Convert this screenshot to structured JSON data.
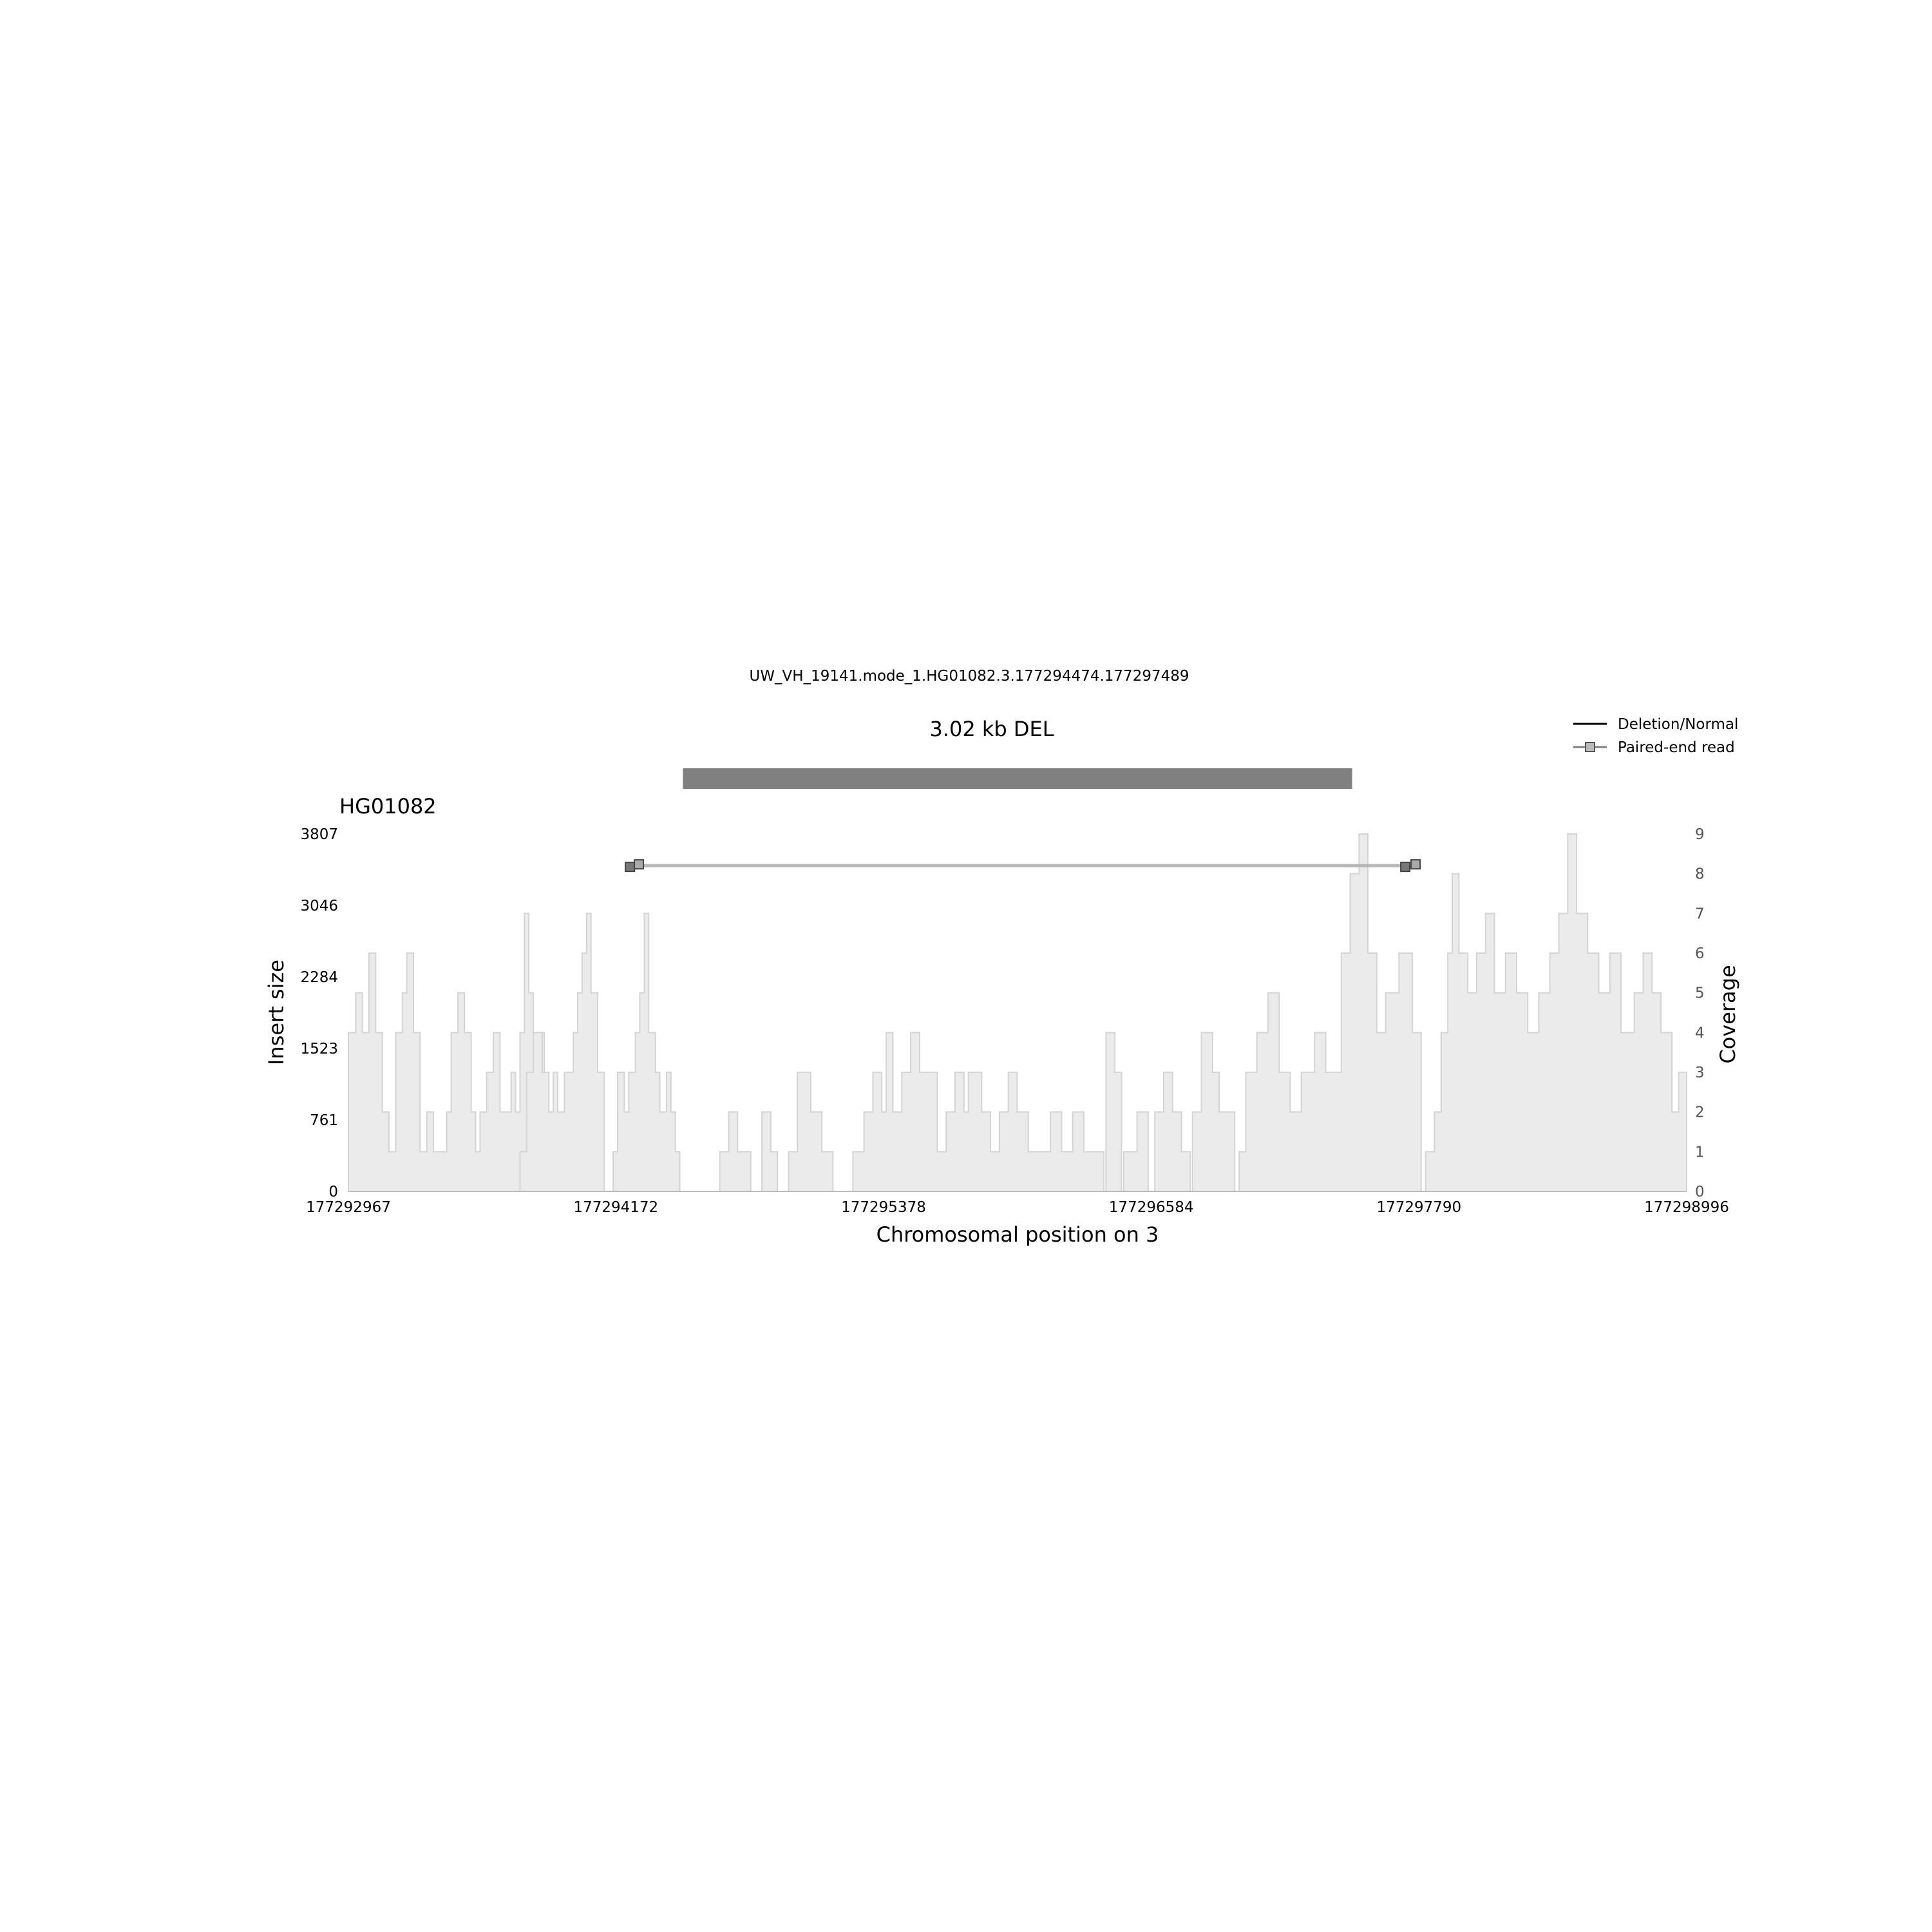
{
  "title": "UW_VH_19141.mode_1.HG01082.3.177294474.177297489",
  "chart_data": {
    "type": "area",
    "variant_label": "3.02 kb DEL",
    "variant_start": 177294474,
    "variant_end": 177297489,
    "sample": "HG01082",
    "xlabel": "Chromosomal position on 3",
    "ylabel_left": "Insert size",
    "ylabel_right": "Coverage",
    "xlim": [
      177292967,
      177298996
    ],
    "x_ticks": [
      "177292967",
      "177294172",
      "177295378",
      "177296584",
      "177297790",
      "177298996"
    ],
    "ylim_left": [
      0,
      3807
    ],
    "y_ticks_left": [
      "0",
      "761",
      "1523",
      "2284",
      "3046",
      "3807"
    ],
    "ylim_right": [
      0,
      9
    ],
    "y_ticks_right": [
      "0",
      "1",
      "2",
      "3",
      "4",
      "5",
      "6",
      "7",
      "8",
      "9"
    ],
    "paired_end_reads": [
      {
        "start": 177294270,
        "end": 177297740,
        "insert_size": 3470
      }
    ],
    "legend": [
      {
        "label": "Deletion/Normal",
        "style": "line",
        "color": "#000000"
      },
      {
        "label": "Paired-end read",
        "style": "line-square",
        "color": "#808080"
      }
    ],
    "coverage_segments": [
      [
        [
          177292967,
          4
        ],
        [
          177293000,
          5
        ],
        [
          177293030,
          4
        ],
        [
          177293060,
          6
        ],
        [
          177293090,
          4
        ],
        [
          177293120,
          2
        ],
        [
          177293150,
          1
        ],
        [
          177293180,
          4
        ],
        [
          177293210,
          5
        ],
        [
          177293230,
          6
        ],
        [
          177293260,
          4
        ],
        [
          177293290,
          1
        ],
        [
          177293320,
          2
        ],
        [
          177293350,
          1
        ],
        [
          177293380,
          1
        ],
        [
          177293410,
          2
        ],
        [
          177293430,
          4
        ],
        [
          177293460,
          5
        ],
        [
          177293490,
          4
        ],
        [
          177293520,
          2
        ],
        [
          177293540,
          1
        ],
        [
          177293560,
          2
        ],
        [
          177293590,
          3
        ],
        [
          177293620,
          4
        ],
        [
          177293650,
          2
        ],
        [
          177293680,
          2
        ],
        [
          177293700,
          3
        ],
        [
          177293720,
          2
        ],
        [
          177293740,
          4
        ],
        [
          177293760,
          7
        ],
        [
          177293780,
          5
        ],
        [
          177293800,
          4
        ],
        [
          177293820,
          4
        ],
        [
          177293840,
          4
        ],
        [
          177293850,
          0
        ]
      ],
      [
        [
          177293740,
          0
        ],
        [
          177293740,
          1
        ],
        [
          177293770,
          3
        ],
        [
          177293800,
          4
        ],
        [
          177293840,
          3
        ],
        [
          177293870,
          2
        ],
        [
          177293890,
          3
        ],
        [
          177293910,
          2
        ],
        [
          177293940,
          3
        ],
        [
          177293960,
          3
        ],
        [
          177293980,
          4
        ],
        [
          177294000,
          5
        ],
        [
          177294020,
          6
        ],
        [
          177294040,
          7
        ],
        [
          177294060,
          5
        ],
        [
          177294090,
          3
        ],
        [
          177294120,
          0
        ]
      ],
      [
        [
          177294160,
          0
        ],
        [
          177294160,
          1
        ],
        [
          177294180,
          3
        ],
        [
          177294210,
          2
        ],
        [
          177294230,
          3
        ],
        [
          177294260,
          4
        ],
        [
          177294280,
          5
        ],
        [
          177294300,
          7
        ],
        [
          177294320,
          4
        ],
        [
          177294350,
          3
        ],
        [
          177294370,
          2
        ],
        [
          177294400,
          3
        ],
        [
          177294420,
          2
        ],
        [
          177294440,
          1
        ],
        [
          177294460,
          0
        ]
      ],
      [
        [
          177294640,
          1
        ],
        [
          177294680,
          2
        ],
        [
          177294720,
          1
        ],
        [
          177294780,
          0
        ]
      ],
      [
        [
          177294830,
          0
        ],
        [
          177294830,
          2
        ],
        [
          177294870,
          1
        ],
        [
          177294900,
          0
        ]
      ],
      [
        [
          177294950,
          0
        ],
        [
          177294950,
          1
        ],
        [
          177294990,
          3
        ],
        [
          177295050,
          2
        ],
        [
          177295100,
          1
        ],
        [
          177295150,
          0
        ]
      ],
      [
        [
          177295240,
          1
        ],
        [
          177295290,
          2
        ],
        [
          177295330,
          3
        ],
        [
          177295370,
          2
        ],
        [
          177295390,
          4
        ],
        [
          177295420,
          2
        ],
        [
          177295460,
          3
        ],
        [
          177295500,
          4
        ],
        [
          177295540,
          3
        ],
        [
          177295580,
          3
        ],
        [
          177295620,
          1
        ],
        [
          177295660,
          2
        ],
        [
          177295700,
          3
        ],
        [
          177295740,
          2
        ],
        [
          177295760,
          3
        ],
        [
          177295790,
          3
        ],
        [
          177295820,
          2
        ],
        [
          177295860,
          1
        ],
        [
          177295900,
          2
        ],
        [
          177295940,
          3
        ],
        [
          177295980,
          2
        ],
        [
          177296030,
          1
        ],
        [
          177296080,
          1
        ],
        [
          177296130,
          2
        ],
        [
          177296180,
          1
        ],
        [
          177296230,
          2
        ],
        [
          177296280,
          1
        ],
        [
          177296330,
          1
        ],
        [
          177296370,
          0
        ]
      ],
      [
        [
          177296380,
          0
        ],
        [
          177296380,
          4
        ],
        [
          177296420,
          3
        ],
        [
          177296450,
          0
        ]
      ],
      [
        [
          177296460,
          0
        ],
        [
          177296460,
          1
        ],
        [
          177296520,
          2
        ],
        [
          177296570,
          0
        ]
      ],
      [
        [
          177296600,
          0
        ],
        [
          177296600,
          2
        ],
        [
          177296640,
          3
        ],
        [
          177296680,
          2
        ],
        [
          177296720,
          1
        ],
        [
          177296760,
          0
        ]
      ],
      [
        [
          177296770,
          0
        ],
        [
          177296770,
          2
        ],
        [
          177296810,
          4
        ],
        [
          177296860,
          3
        ],
        [
          177296890,
          2
        ],
        [
          177296920,
          2
        ],
        [
          177296960,
          0
        ]
      ],
      [
        [
          177296980,
          0
        ],
        [
          177296980,
          1
        ],
        [
          177297010,
          3
        ],
        [
          177297060,
          4
        ],
        [
          177297110,
          5
        ],
        [
          177297160,
          3
        ],
        [
          177297210,
          2
        ],
        [
          177297260,
          3
        ],
        [
          177297320,
          4
        ],
        [
          177297370,
          3
        ],
        [
          177297440,
          6
        ],
        [
          177297480,
          8
        ],
        [
          177297520,
          9
        ],
        [
          177297560,
          6
        ],
        [
          177297600,
          4
        ],
        [
          177297640,
          5
        ],
        [
          177297700,
          6
        ],
        [
          177297760,
          4
        ],
        [
          177297800,
          0
        ]
      ],
      [
        [
          177297820,
          0
        ],
        [
          177297820,
          1
        ],
        [
          177297860,
          2
        ],
        [
          177297890,
          4
        ],
        [
          177297920,
          6
        ],
        [
          177297940,
          8
        ],
        [
          177297970,
          6
        ],
        [
          177298010,
          5
        ],
        [
          177298050,
          6
        ],
        [
          177298090,
          7
        ],
        [
          177298130,
          5
        ],
        [
          177298180,
          6
        ],
        [
          177298230,
          5
        ],
        [
          177298280,
          4
        ],
        [
          177298330,
          5
        ],
        [
          177298380,
          6
        ],
        [
          177298420,
          7
        ],
        [
          177298460,
          9
        ],
        [
          177298500,
          7
        ],
        [
          177298550,
          6
        ],
        [
          177298600,
          5
        ],
        [
          177298650,
          6
        ],
        [
          177298700,
          4
        ],
        [
          177298760,
          5
        ],
        [
          177298800,
          6
        ],
        [
          177298840,
          5
        ],
        [
          177298880,
          4
        ],
        [
          177298930,
          2
        ],
        [
          177298960,
          3
        ],
        [
          177298996,
          0
        ]
      ]
    ]
  }
}
